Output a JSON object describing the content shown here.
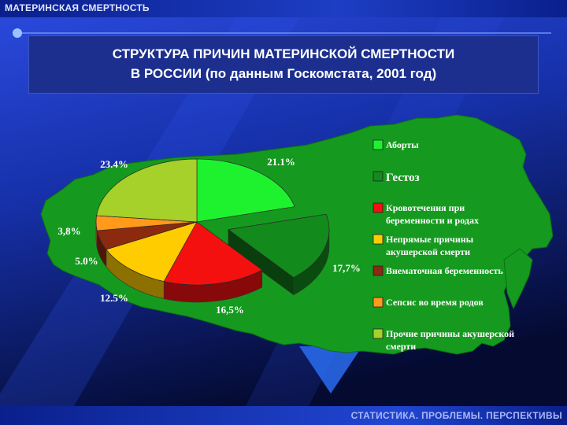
{
  "header": {
    "title": "МАТЕРИНСКАЯ СМЕРТНОСТЬ"
  },
  "title_box": {
    "line1": "СТРУКТУРА ПРИЧИН МАТЕРИНСКОЙ СМЕРТНОСТИ",
    "line2": "В РОССИИ (по данным Госкомстата, 2001 год)"
  },
  "footer": {
    "text": "СТАТИСТИКА. ПРОБЛЕМЫ. ПЕРСПЕКТИВЫ"
  },
  "colors": {
    "background": "#0c1e78",
    "map": "#159a1f",
    "accent": "#1d3ec4"
  },
  "chart_data": {
    "type": "pie",
    "title": "СТРУКТУРА ПРИЧИН МАТЕРИНСКОЙ СМЕРТНОСТИ В РОССИИ (по данным Госкомстата, 2001 год)",
    "series": [
      {
        "name": "Аборты",
        "value": 21.1,
        "label": "21.1%",
        "color": "#1ef22f",
        "exploded": false
      },
      {
        "name": "Гестоз",
        "value": 17.7,
        "label": "17,7%",
        "color": "#138a1c",
        "exploded": true
      },
      {
        "name": "Кровотечения при беременности и родах",
        "value": 16.5,
        "label": "16,5%",
        "color": "#f51010",
        "exploded": false
      },
      {
        "name": "Непрямые причины акушерской смерти",
        "value": 12.5,
        "label": "12.5%",
        "color": "#ffcc00",
        "exploded": false
      },
      {
        "name": "Внематочная беременность",
        "value": 5.0,
        "label": "5.0%",
        "color": "#8b2a0f",
        "exploded": false
      },
      {
        "name": "Сепсис во время родов",
        "value": 3.8,
        "label": "3,8%",
        "color": "#ff9a1a",
        "exploded": false
      },
      {
        "name": "Прочие причины акушерской смерти",
        "value": 23.4,
        "label": "23.4%",
        "color": "#a6d12a",
        "exploded": false
      }
    ],
    "legend": {
      "placement": "right",
      "items": [
        {
          "lines": [
            "Аборты"
          ],
          "color": "#1ef22f"
        },
        {
          "lines": [
            "Гестоз"
          ],
          "color": "#138a1c"
        },
        {
          "lines": [
            "Кровотечения при",
            "беременности и родах"
          ],
          "color": "#f51010"
        },
        {
          "lines": [
            "Непрямые причины",
            "акушерской смерти"
          ],
          "color": "#ffcc00"
        },
        {
          "lines": [
            "Внематочная беременность"
          ],
          "color": "#8b2a0f"
        },
        {
          "lines": [
            "Сепсис во время родов"
          ],
          "color": "#ff9a1a"
        },
        {
          "lines": [
            "Прочие причины акушерской",
            "смерти"
          ],
          "color": "#a6d12a"
        }
      ]
    }
  }
}
